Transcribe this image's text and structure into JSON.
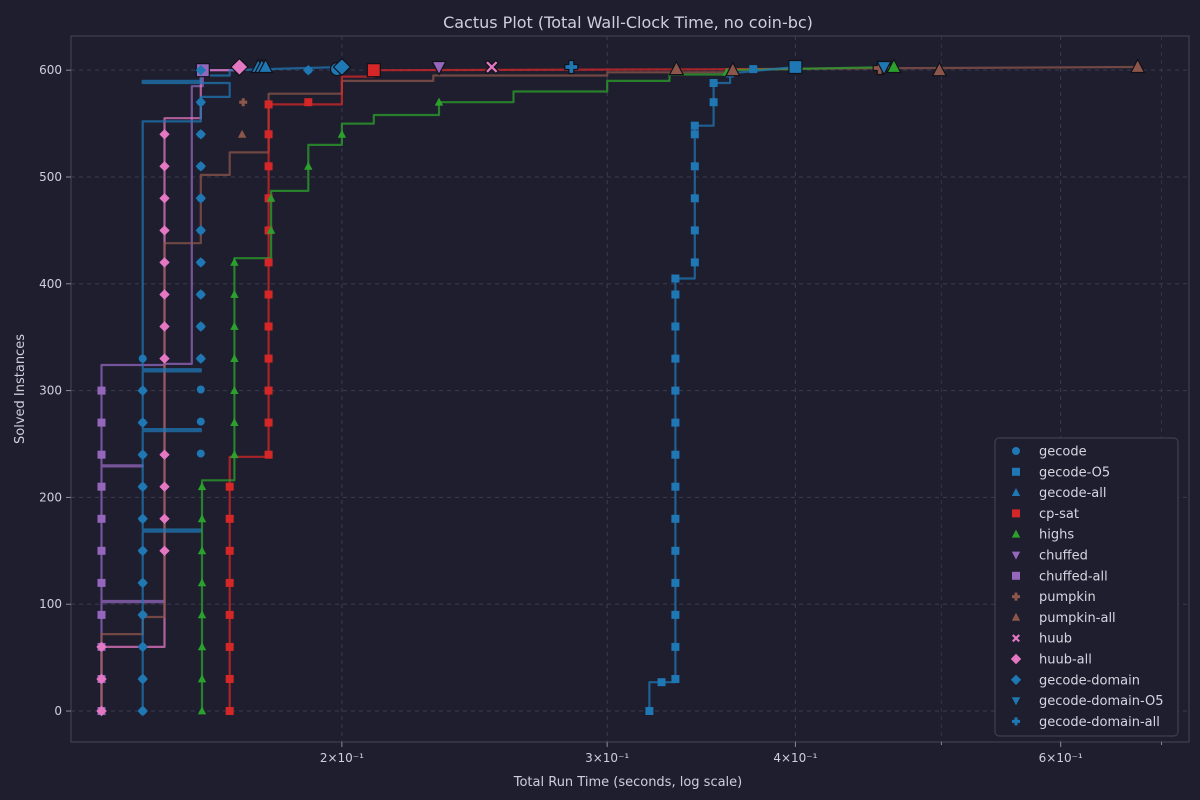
{
  "chart_data": {
    "type": "line",
    "title": "Cactus Plot (Total Wall-Clock Time, no coin-bc)",
    "xlabel": "Total Run Time (seconds, log scale)",
    "ylabel": "Solved Instances",
    "xscale": "log",
    "xlim": [
      0.1322,
      0.73
    ],
    "ylim": [
      -29,
      632
    ],
    "grid": true,
    "legend_position": "bottom-right",
    "x_ticks": [
      {
        "value": 0.2,
        "label": "2×10⁻¹"
      },
      {
        "value": 0.3,
        "label": "3×10⁻¹"
      },
      {
        "value": 0.4,
        "label": "4×10⁻¹"
      },
      {
        "value": 0.6,
        "label": "6×10⁻¹"
      }
    ],
    "x_minor_ticks": [
      0.5,
      0.7
    ],
    "y_ticks": [
      0,
      100,
      200,
      300,
      400,
      500,
      600
    ],
    "series": [
      {
        "name": "gecode",
        "color": "#1f77b4",
        "marker": "circle",
        "x": [
          0.1475,
          0.1475,
          0.1475,
          0.1475,
          0.1475,
          0.1475,
          0.1475,
          0.1475,
          0.1475,
          0.1475,
          0.1475,
          0.1475,
          0.1612,
          0.1612,
          0.1612,
          0.1612,
          0.1612,
          0.1612,
          0.1612,
          0.1612,
          0.1612,
          0.1612,
          0.1612,
          0.1612,
          0.19,
          0.1985
        ],
        "y": [
          0,
          30,
          60,
          90,
          120,
          150,
          180,
          210,
          240,
          270,
          300,
          330,
          360,
          390,
          420,
          450,
          480,
          510,
          540,
          570,
          241,
          271,
          301,
          330,
          600,
          601
        ]
      },
      {
        "name": "gecode-O5",
        "color": "#1f77b4",
        "marker": "square",
        "x": [
          0.32,
          0.326,
          0.333,
          0.333,
          0.333,
          0.333,
          0.333,
          0.333,
          0.333,
          0.333,
          0.333,
          0.333,
          0.333,
          0.333,
          0.333,
          0.333,
          0.343,
          0.343,
          0.343,
          0.343,
          0.343,
          0.343,
          0.353,
          0.353,
          0.362,
          0.375,
          0.4
        ],
        "y": [
          0,
          27,
          30,
          60,
          90,
          120,
          150,
          180,
          210,
          240,
          270,
          300,
          330,
          360,
          390,
          405,
          420,
          450,
          480,
          510,
          540,
          548,
          570,
          588,
          597,
          601,
          603
        ]
      },
      {
        "name": "gecode-all",
        "color": "#1f77b4",
        "marker": "triangle-up",
        "x": [
          0.176,
          0.177,
          0.178
        ],
        "y": [
          603,
          603,
          603
        ]
      },
      {
        "name": "cp-sat",
        "color": "#d62728",
        "marker": "square",
        "x": [
          0.1685,
          0.1685,
          0.1685,
          0.1685,
          0.1685,
          0.1685,
          0.1685,
          0.1685,
          0.1788,
          0.1788,
          0.1788,
          0.1788,
          0.1788,
          0.1788,
          0.1788,
          0.1788,
          0.1788,
          0.1788,
          0.1788,
          0.1788,
          0.19,
          0.21
        ],
        "y": [
          0,
          30,
          60,
          90,
          120,
          150,
          180,
          210,
          240,
          270,
          300,
          330,
          360,
          390,
          420,
          450,
          480,
          510,
          540,
          568,
          570,
          600
        ]
      },
      {
        "name": "highs",
        "color": "#2ca02c",
        "marker": "triangle-up",
        "x": [
          0.1615,
          0.1615,
          0.1615,
          0.1615,
          0.1615,
          0.1615,
          0.1615,
          0.1615,
          0.1697,
          0.1697,
          0.1697,
          0.1697,
          0.1697,
          0.1697,
          0.1697,
          0.1795,
          0.1795,
          0.19,
          0.2,
          0.232,
          0.36,
          0.465
        ],
        "y": [
          0,
          30,
          60,
          90,
          120,
          150,
          180,
          210,
          240,
          270,
          300,
          330,
          360,
          390,
          420,
          450,
          480,
          510,
          540,
          570,
          598,
          603
        ]
      },
      {
        "name": "chuffed",
        "color": "#9467bd",
        "marker": "triangle-down",
        "x": [
          0.232
        ],
        "y": [
          603
        ]
      },
      {
        "name": "chuffed-all",
        "color": "#9467bd",
        "marker": "square",
        "x": [
          0.1385,
          0.1385,
          0.1385,
          0.1385,
          0.1385,
          0.1385,
          0.1385,
          0.1385,
          0.1385,
          0.1385,
          0.1385,
          0.1617
        ],
        "y": [
          0,
          30,
          60,
          90,
          120,
          150,
          180,
          210,
          240,
          270,
          300,
          600
        ]
      },
      {
        "name": "pumpkin",
        "color": "#8c564b",
        "marker": "plus",
        "x": [
          0.172,
          0.455
        ],
        "y": [
          570,
          602
        ]
      },
      {
        "name": "pumpkin-all",
        "color": "#8c564b",
        "marker": "triangle-up",
        "x": [
          0.1717,
          0.3335,
          0.3635,
          0.4985,
          0.675
        ],
        "y": [
          540,
          601,
          600,
          600,
          603
        ]
      },
      {
        "name": "huub",
        "color": "#e377c2",
        "marker": "x",
        "x": [
          0.2515
        ],
        "y": [
          603
        ]
      },
      {
        "name": "huub-all",
        "color": "#e377c2",
        "marker": "diamond",
        "x": [
          0.1385,
          0.1385,
          0.1385,
          0.1525,
          0.1525,
          0.1525,
          0.1525,
          0.1525,
          0.1525,
          0.1525,
          0.1525,
          0.1525,
          0.1525,
          0.1525,
          0.1525,
          0.171
        ],
        "y": [
          0,
          30,
          60,
          330,
          360,
          390,
          420,
          450,
          480,
          510,
          540,
          150,
          180,
          210,
          240,
          603
        ]
      },
      {
        "name": "gecode-domain",
        "color": "#1f77b4",
        "marker": "diamond",
        "x": [
          0.1475,
          0.1475,
          0.1475,
          0.1475,
          0.1475,
          0.1475,
          0.1475,
          0.1475,
          0.1475,
          0.1475,
          0.1475,
          0.1612,
          0.1612,
          0.1612,
          0.1612,
          0.1612,
          0.1612,
          0.1612,
          0.1612,
          0.1612,
          0.1612,
          0.19,
          0.2
        ],
        "y": [
          0,
          30,
          60,
          90,
          120,
          150,
          180,
          210,
          240,
          270,
          300,
          330,
          360,
          390,
          420,
          450,
          480,
          510,
          540,
          570,
          600,
          600,
          603
        ]
      },
      {
        "name": "gecode-domain-O5",
        "color": "#1f77b4",
        "marker": "triangle-down",
        "x": [
          0.458
        ],
        "y": [
          603
        ]
      },
      {
        "name": "gecode-domain-all",
        "color": "#1f77b4",
        "marker": "plus",
        "x": [
          0.284
        ],
        "y": [
          603
        ]
      }
    ],
    "step_lines": [
      {
        "name": "chuffed-all",
        "color": "#9467bd",
        "x": [
          0.1385,
          0.1385,
          0.1525,
          0.1525,
          0.1385,
          0.1385,
          0.1475,
          0.1475,
          0.1385,
          0.1385,
          0.1525,
          0.1525,
          0.159,
          0.159,
          0.1617,
          0.1617,
          0.1712
        ],
        "y": [
          0,
          102,
          102,
          103,
          103,
          229,
          229,
          230,
          230,
          324,
          324,
          325,
          325,
          585,
          585,
          600,
          600
        ]
      },
      {
        "name": "huub-all",
        "color": "#e377c2",
        "x": [
          0.1385,
          0.1385,
          0.1525,
          0.1525,
          0.1612,
          0.1612,
          0.171
        ],
        "y": [
          0,
          60,
          60,
          555,
          555,
          600,
          600
        ]
      },
      {
        "name": "pumpkin-all",
        "color": "#8c564b",
        "x": [
          0.1385,
          0.1385,
          0.1475,
          0.1475,
          0.1525,
          0.1525,
          0.1612,
          0.1612,
          0.1685,
          0.1685,
          0.1788,
          0.1788,
          0.2,
          0.2,
          0.23,
          0.23,
          0.3,
          0.3,
          0.36,
          0.36,
          0.675
        ],
        "y": [
          0,
          72,
          72,
          88,
          88,
          438,
          438,
          502,
          502,
          523,
          523,
          578,
          578,
          590,
          590,
          595,
          595,
          598,
          598,
          601,
          603
        ]
      },
      {
        "name": "gecode-domain",
        "color": "#1f77b4",
        "x": [
          0.1475,
          0.1475,
          0.1612,
          0.1612,
          0.1475,
          0.1475,
          0.1612,
          0.1612,
          0.1475,
          0.1475,
          0.1612,
          0.1612,
          0.1475,
          0.1475,
          0.1612,
          0.1612,
          0.1685,
          0.1685,
          0.1475,
          0.1475,
          0.1612,
          0.1612,
          0.1685,
          0.1685,
          0.2
        ],
        "y": [
          0,
          168,
          168,
          170,
          170,
          262,
          262,
          264,
          264,
          318,
          318,
          320,
          320,
          552,
          552,
          575,
          575,
          588,
          588,
          590,
          590,
          595,
          595,
          600,
          603
        ]
      },
      {
        "name": "cp-sat",
        "color": "#d62728",
        "x": [
          0.1685,
          0.1685,
          0.1788,
          0.1788,
          0.2,
          0.2,
          0.21,
          0.21,
          0.4
        ],
        "y": [
          0,
          238,
          238,
          568,
          568,
          594,
          594,
          600,
          601
        ]
      },
      {
        "name": "highs",
        "color": "#2ca02c",
        "x": [
          0.1615,
          0.1615,
          0.1697,
          0.1697,
          0.1795,
          0.1795,
          0.19,
          0.19,
          0.2,
          0.2,
          0.21,
          0.21,
          0.232,
          0.232,
          0.26,
          0.26,
          0.3,
          0.3,
          0.33,
          0.33,
          0.36,
          0.36,
          0.465
        ],
        "y": [
          0,
          216,
          216,
          424,
          424,
          487,
          487,
          530,
          530,
          550,
          550,
          558,
          558,
          570,
          570,
          580,
          580,
          590,
          590,
          596,
          596,
          600,
          603
        ]
      },
      {
        "name": "gecode-O5",
        "color": "#1f77b4",
        "x": [
          0.32,
          0.32,
          0.333,
          0.333,
          0.343,
          0.343,
          0.353,
          0.353,
          0.362,
          0.362,
          0.4
        ],
        "y": [
          0,
          27,
          27,
          405,
          405,
          548,
          548,
          588,
          588,
          597,
          603
        ]
      }
    ],
    "legend": [
      "gecode",
      "gecode-O5",
      "gecode-all",
      "cp-sat",
      "highs",
      "chuffed",
      "chuffed-all",
      "pumpkin",
      "pumpkin-all",
      "huub",
      "huub-all",
      "gecode-domain",
      "gecode-domain-O5",
      "gecode-domain-all"
    ]
  }
}
